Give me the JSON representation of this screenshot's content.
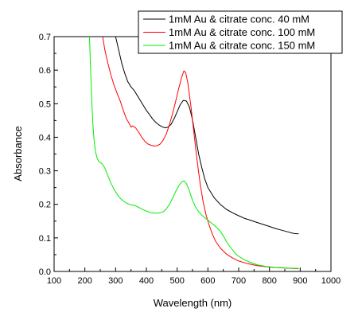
{
  "chart_data": {
    "type": "line",
    "xlabel": "Wavelength (nm)",
    "ylabel": "Absorbance",
    "xlim": [
      100,
      1000
    ],
    "ylim": [
      0.0,
      0.7
    ],
    "x_ticks": [
      100,
      200,
      300,
      400,
      500,
      600,
      700,
      800,
      900,
      1000
    ],
    "y_ticks": [
      0.0,
      0.1,
      0.2,
      0.3,
      0.4,
      0.5,
      0.6,
      0.7
    ],
    "y_tick_labels": [
      "0.0",
      "0.1",
      "0.2",
      "0.3",
      "0.4",
      "0.5",
      "0.6",
      "0.7"
    ],
    "legend_position": "top-right",
    "series": [
      {
        "name": "1mM Au & citrate conc.   40 mM",
        "color": "#000000",
        "points": [
          [
            300,
            0.7
          ],
          [
            310,
            0.66
          ],
          [
            320,
            0.62
          ],
          [
            330,
            0.59
          ],
          [
            340,
            0.565
          ],
          [
            350,
            0.55
          ],
          [
            360,
            0.54
          ],
          [
            370,
            0.525
          ],
          [
            380,
            0.51
          ],
          [
            390,
            0.495
          ],
          [
            400,
            0.48
          ],
          [
            410,
            0.468
          ],
          [
            420,
            0.455
          ],
          [
            430,
            0.445
          ],
          [
            440,
            0.437
          ],
          [
            450,
            0.432
          ],
          [
            460,
            0.428
          ],
          [
            470,
            0.43
          ],
          [
            480,
            0.438
          ],
          [
            490,
            0.455
          ],
          [
            500,
            0.476
          ],
          [
            510,
            0.497
          ],
          [
            520,
            0.51
          ],
          [
            530,
            0.508
          ],
          [
            540,
            0.49
          ],
          [
            550,
            0.452
          ],
          [
            560,
            0.4
          ],
          [
            570,
            0.35
          ],
          [
            580,
            0.31
          ],
          [
            590,
            0.275
          ],
          [
            600,
            0.25
          ],
          [
            620,
            0.22
          ],
          [
            640,
            0.2
          ],
          [
            660,
            0.185
          ],
          [
            680,
            0.175
          ],
          [
            700,
            0.166
          ],
          [
            720,
            0.158
          ],
          [
            740,
            0.152
          ],
          [
            760,
            0.146
          ],
          [
            780,
            0.14
          ],
          [
            800,
            0.134
          ],
          [
            820,
            0.128
          ],
          [
            840,
            0.123
          ],
          [
            860,
            0.118
          ],
          [
            880,
            0.113
          ],
          [
            895,
            0.112
          ]
        ]
      },
      {
        "name": "1mM Au & citrate conc. 100 mM",
        "color": "#ff0000",
        "points": [
          [
            258,
            0.7
          ],
          [
            265,
            0.66
          ],
          [
            275,
            0.62
          ],
          [
            285,
            0.585
          ],
          [
            295,
            0.555
          ],
          [
            305,
            0.53
          ],
          [
            315,
            0.508
          ],
          [
            325,
            0.48
          ],
          [
            335,
            0.455
          ],
          [
            345,
            0.44
          ],
          [
            350,
            0.43
          ],
          [
            355,
            0.434
          ],
          [
            365,
            0.428
          ],
          [
            375,
            0.415
          ],
          [
            385,
            0.4
          ],
          [
            395,
            0.388
          ],
          [
            405,
            0.38
          ],
          [
            415,
            0.376
          ],
          [
            425,
            0.374
          ],
          [
            435,
            0.375
          ],
          [
            445,
            0.38
          ],
          [
            455,
            0.392
          ],
          [
            465,
            0.41
          ],
          [
            475,
            0.438
          ],
          [
            485,
            0.47
          ],
          [
            495,
            0.506
          ],
          [
            505,
            0.545
          ],
          [
            515,
            0.58
          ],
          [
            522,
            0.598
          ],
          [
            528,
            0.592
          ],
          [
            535,
            0.56
          ],
          [
            545,
            0.49
          ],
          [
            555,
            0.41
          ],
          [
            565,
            0.33
          ],
          [
            575,
            0.26
          ],
          [
            585,
            0.205
          ],
          [
            595,
            0.165
          ],
          [
            605,
            0.135
          ],
          [
            615,
            0.11
          ],
          [
            625,
            0.09
          ],
          [
            640,
            0.07
          ],
          [
            660,
            0.052
          ],
          [
            680,
            0.04
          ],
          [
            700,
            0.031
          ],
          [
            730,
            0.023
          ],
          [
            760,
            0.017
          ],
          [
            800,
            0.013
          ],
          [
            850,
            0.01
          ],
          [
            895,
            0.008
          ]
        ]
      },
      {
        "name": "1mM Au & citrate conc. 150 mM",
        "color": "#00ee00",
        "points": [
          [
            215,
            0.7
          ],
          [
            218,
            0.62
          ],
          [
            222,
            0.52
          ],
          [
            226,
            0.44
          ],
          [
            230,
            0.39
          ],
          [
            235,
            0.355
          ],
          [
            240,
            0.338
          ],
          [
            245,
            0.328
          ],
          [
            250,
            0.325
          ],
          [
            257,
            0.32
          ],
          [
            265,
            0.308
          ],
          [
            275,
            0.285
          ],
          [
            285,
            0.263
          ],
          [
            295,
            0.245
          ],
          [
            305,
            0.23
          ],
          [
            315,
            0.218
          ],
          [
            325,
            0.21
          ],
          [
            335,
            0.204
          ],
          [
            345,
            0.2
          ],
          [
            355,
            0.198
          ],
          [
            365,
            0.196
          ],
          [
            375,
            0.191
          ],
          [
            385,
            0.186
          ],
          [
            395,
            0.182
          ],
          [
            405,
            0.178
          ],
          [
            415,
            0.175
          ],
          [
            425,
            0.174
          ],
          [
            435,
            0.174
          ],
          [
            445,
            0.175
          ],
          [
            455,
            0.178
          ],
          [
            465,
            0.186
          ],
          [
            475,
            0.2
          ],
          [
            485,
            0.218
          ],
          [
            495,
            0.238
          ],
          [
            505,
            0.255
          ],
          [
            515,
            0.267
          ],
          [
            522,
            0.27
          ],
          [
            530,
            0.262
          ],
          [
            540,
            0.24
          ],
          [
            550,
            0.212
          ],
          [
            560,
            0.192
          ],
          [
            570,
            0.178
          ],
          [
            580,
            0.168
          ],
          [
            590,
            0.16
          ],
          [
            600,
            0.153
          ],
          [
            610,
            0.145
          ],
          [
            620,
            0.138
          ],
          [
            630,
            0.13
          ],
          [
            640,
            0.12
          ],
          [
            650,
            0.106
          ],
          [
            660,
            0.09
          ],
          [
            670,
            0.076
          ],
          [
            680,
            0.064
          ],
          [
            690,
            0.053
          ],
          [
            700,
            0.045
          ],
          [
            720,
            0.034
          ],
          [
            740,
            0.026
          ],
          [
            760,
            0.02
          ],
          [
            790,
            0.015
          ],
          [
            820,
            0.012
          ],
          [
            860,
            0.01
          ],
          [
            895,
            0.009
          ]
        ]
      }
    ]
  }
}
